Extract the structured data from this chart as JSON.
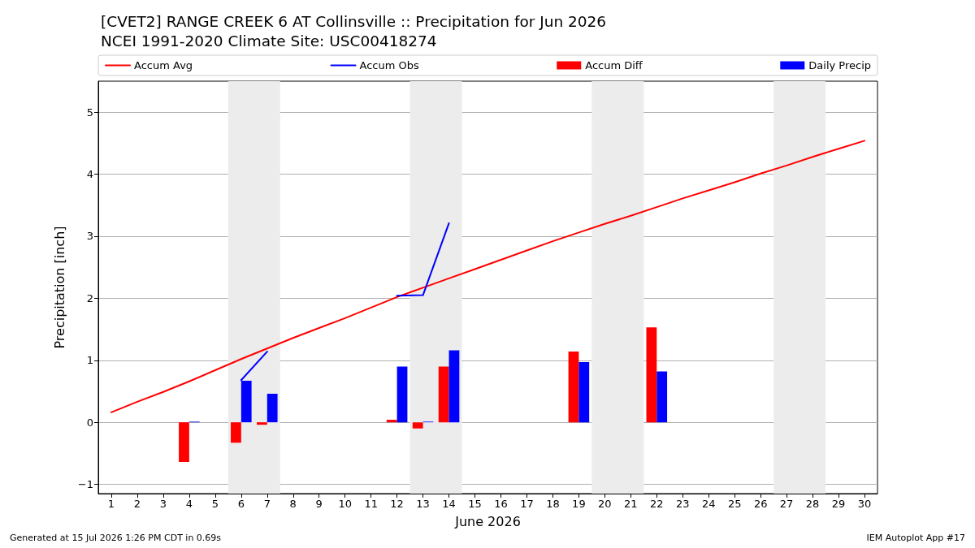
{
  "chart_data": {
    "type": "bar",
    "title": "[CVET2] RANGE CREEK 6 AT Collinsville :: Precipitation for Jun 2026",
    "subtitle": "NCEI 1991-2020 Climate Site: USC00418274",
    "xlabel": "June 2026",
    "ylabel": "Precipitation [inch]",
    "x": [
      1,
      2,
      3,
      4,
      5,
      6,
      7,
      8,
      9,
      10,
      11,
      12,
      13,
      14,
      15,
      16,
      17,
      18,
      19,
      20,
      21,
      22,
      23,
      24,
      25,
      26,
      27,
      28,
      29,
      30
    ],
    "series": [
      {
        "name": "Accum Avg",
        "type": "line",
        "color": "#ff0000",
        "values": [
          0.16,
          0.33,
          0.49,
          0.66,
          0.84,
          1.02,
          1.19,
          1.36,
          1.52,
          1.68,
          1.85,
          2.02,
          2.17,
          2.32,
          2.47,
          2.62,
          2.77,
          2.92,
          3.06,
          3.2,
          3.33,
          3.47,
          3.61,
          3.74,
          3.87,
          4.01,
          4.14,
          4.28,
          4.41,
          4.54
        ]
      },
      {
        "name": "Accum Obs",
        "type": "line",
        "color": "#0000ff",
        "values": [
          null,
          null,
          null,
          null,
          null,
          0.68,
          1.14,
          null,
          null,
          null,
          null,
          2.04,
          2.05,
          3.21,
          null,
          null,
          null,
          null,
          null,
          null,
          null,
          null,
          null,
          null,
          null,
          null,
          null,
          null,
          null,
          null
        ]
      },
      {
        "name": "Accum Diff",
        "color": "#ff0000",
        "values": [
          null,
          null,
          null,
          -0.64,
          null,
          -0.33,
          -0.04,
          null,
          null,
          null,
          null,
          0.04,
          -0.1,
          0.9,
          null,
          null,
          null,
          null,
          1.14,
          null,
          null,
          1.53,
          null,
          null,
          null,
          null,
          null,
          null,
          null,
          null
        ]
      },
      {
        "name": "Daily Precip",
        "color": "#0000ff",
        "values": [
          null,
          null,
          null,
          0.01,
          null,
          0.67,
          0.46,
          null,
          null,
          null,
          null,
          0.9,
          0.01,
          1.16,
          null,
          null,
          null,
          null,
          0.97,
          null,
          null,
          0.82,
          null,
          null,
          null,
          null,
          null,
          null,
          null,
          null
        ]
      }
    ],
    "xlim": [
      0.5,
      30.5
    ],
    "xticks": [
      1,
      2,
      3,
      4,
      5,
      6,
      7,
      8,
      9,
      10,
      11,
      12,
      13,
      14,
      15,
      16,
      17,
      18,
      19,
      20,
      21,
      22,
      23,
      24,
      25,
      26,
      27,
      28,
      29,
      30
    ],
    "ylim": [
      -1.15,
      5.5
    ],
    "yticks": [
      {
        "value": -1,
        "label": "−1"
      },
      0,
      1,
      2,
      3,
      4,
      5
    ],
    "bands": [
      {
        "axis": "x",
        "from": 5.5,
        "to": 7.5,
        "color": "#ececec"
      },
      {
        "axis": "x",
        "from": 12.5,
        "to": 14.5,
        "color": "#ececec"
      },
      {
        "axis": "x",
        "from": 19.5,
        "to": 21.5,
        "color": "#ececec"
      },
      {
        "axis": "x",
        "from": 26.5,
        "to": 28.5,
        "color": "#ececec"
      }
    ],
    "grid": "y",
    "legend": "top",
    "marker": "none",
    "line_style": "solid",
    "annotations": [
      "Generated at 15 Jul 2026 1:26 PM CDT in 0.69s",
      "IEM Autoplot App #17"
    ]
  }
}
